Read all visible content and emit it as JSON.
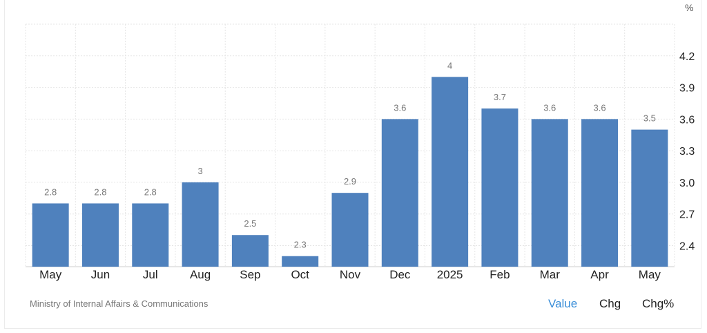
{
  "unit_label": "%",
  "source": "Ministry of Internal Affairs & Communications",
  "tabs": [
    {
      "label": "Value",
      "active": true
    },
    {
      "label": "Chg",
      "active": false
    },
    {
      "label": "Chg%",
      "active": false
    }
  ],
  "colors": {
    "bar": "#4f81bd",
    "grid": "#e6e6e6",
    "axis_text": "#222222",
    "value_label": "#777777",
    "active_tab": "#3a8ed8"
  },
  "chart_data": {
    "type": "bar",
    "categories": [
      "May",
      "Jun",
      "Jul",
      "Aug",
      "Sep",
      "Oct",
      "Nov",
      "Dec",
      "2025",
      "Feb",
      "Mar",
      "Apr",
      "May"
    ],
    "values": [
      2.8,
      2.8,
      2.8,
      3.0,
      2.5,
      2.3,
      2.9,
      3.6,
      4.0,
      3.7,
      3.6,
      3.6,
      3.5
    ],
    "data_labels": [
      "2.8",
      "2.8",
      "2.8",
      "3",
      "2.5",
      "2.3",
      "2.9",
      "3.6",
      "4",
      "3.7",
      "3.6",
      "3.6",
      "3.5"
    ],
    "y_ticks": [
      "2.4",
      "2.7",
      "3.0",
      "3.3",
      "3.6",
      "3.9",
      "4.2"
    ],
    "ylim": [
      2.2,
      4.5
    ],
    "y_axis_position": "right",
    "grid": true
  }
}
